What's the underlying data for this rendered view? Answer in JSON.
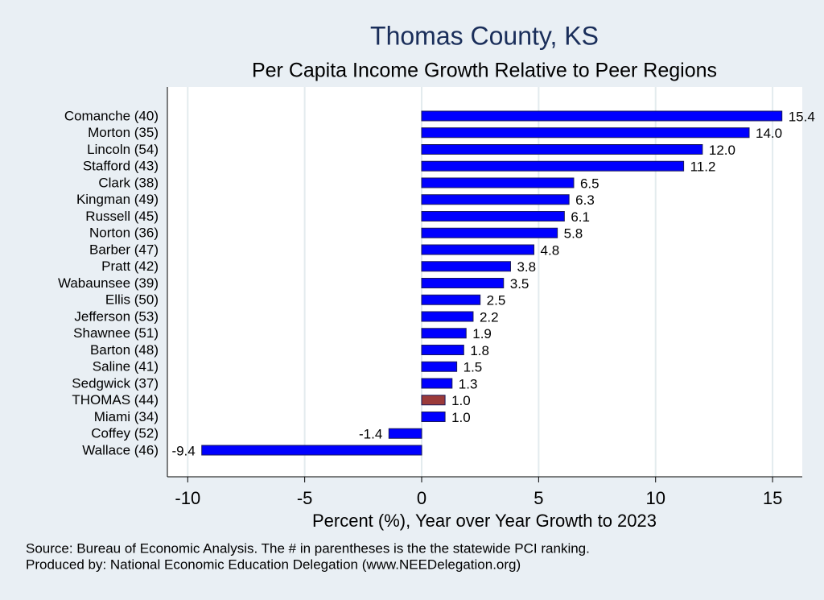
{
  "chart_data": {
    "type": "bar",
    "orientation": "horizontal",
    "title": "Thomas County, KS",
    "subtitle": "Per Capita Income Growth Relative to Peer Regions",
    "x_label": "Percent (%), Year over Year Growth to 2023",
    "notes": [
      "Source: Bureau of Economic Analysis. The # in parentheses is the the statewide PCI ranking.",
      "Produced by: National Economic Education Delegation (www.NEEDelegation.org)"
    ],
    "categories": [
      "Comanche (40)",
      "Morton (35)",
      "Lincoln (54)",
      "Stafford (43)",
      "Clark (38)",
      "Kingman (49)",
      "Russell (45)",
      "Norton (36)",
      "Barber (47)",
      "Pratt (42)",
      "Wabaunsee (39)",
      "Ellis (50)",
      "Jefferson (53)",
      "Shawnee (51)",
      "Barton (48)",
      "Saline (41)",
      "Sedgwick (37)",
      "THOMAS (44)",
      "Miami (34)",
      "Coffey (52)",
      "Wallace (46)"
    ],
    "values": [
      15.4,
      14.0,
      12.0,
      11.2,
      6.5,
      6.3,
      6.1,
      5.8,
      4.8,
      3.8,
      3.5,
      2.5,
      2.2,
      1.9,
      1.8,
      1.5,
      1.3,
      1.0,
      1.0,
      -1.4,
      -9.4
    ],
    "value_labels": [
      "15.4",
      "14.0",
      "12.0",
      "11.2",
      "6.5",
      "6.3",
      "6.1",
      "5.8",
      "4.8",
      "3.8",
      "3.5",
      "2.5",
      "2.2",
      "1.9",
      "1.8",
      "1.5",
      "1.3",
      "1.0",
      "1.0",
      "-1.4",
      "-9.4"
    ],
    "colors": [
      "#0000ff",
      "#0000ff",
      "#0000ff",
      "#0000ff",
      "#0000ff",
      "#0000ff",
      "#0000ff",
      "#0000ff",
      "#0000ff",
      "#0000ff",
      "#0000ff",
      "#0000ff",
      "#0000ff",
      "#0000ff",
      "#0000ff",
      "#0000ff",
      "#0000ff",
      "#9b3a3a",
      "#0000ff",
      "#0000ff",
      "#0000ff"
    ],
    "xlim": [
      -10.87,
      16.27
    ],
    "xticks": [
      -10,
      -5,
      0,
      5,
      10,
      15
    ],
    "grid": true
  }
}
